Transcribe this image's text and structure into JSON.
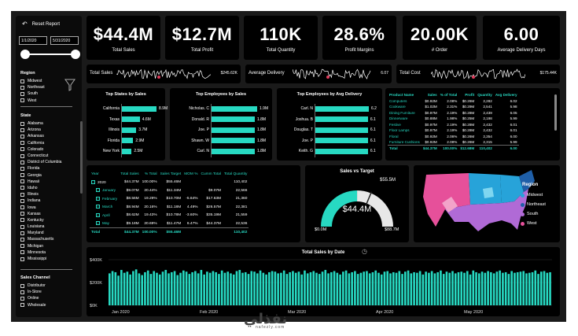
{
  "sidebar": {
    "reset_label": "Reset Report",
    "date_start": "1/1/2020",
    "date_end": "5/31/2020",
    "region_title": "Region",
    "regions": [
      "Midwest",
      "Northeast",
      "South",
      "West"
    ],
    "state_title": "State",
    "states": [
      "Alabama",
      "Arizona",
      "Arkansas",
      "California",
      "Colorado",
      "Connecticut",
      "District of Columbia",
      "Florida",
      "Georgia",
      "Hawaii",
      "Idaho",
      "Illinois",
      "Indiana",
      "Iowa",
      "Kansas",
      "Kentucky",
      "Louisiana",
      "Maryland",
      "Massachusetts",
      "Michigan",
      "Minnesota",
      "Mississippi"
    ],
    "channel_title": "Sales Channel",
    "channels": [
      "Distributor",
      "In-Store",
      "Online",
      "Wholesale"
    ]
  },
  "kpis": [
    {
      "value": "$44.4M",
      "label": "Total Sales"
    },
    {
      "value": "$12.7M",
      "label": "Total Profit"
    },
    {
      "value": "110K",
      "label": "Total Quantity"
    },
    {
      "value": "28.6%",
      "label": "Profit Margins"
    },
    {
      "value": "20.00K",
      "label": "# Order"
    },
    {
      "value": "6.00",
      "label": "Average Delivery Days"
    }
  ],
  "trends": [
    {
      "label": "Total Sales",
      "value": "$245.62K"
    },
    {
      "label": "Average Delivery",
      "value": "6.07"
    },
    {
      "label": "Total Cost",
      "value": "$175.44K"
    }
  ],
  "top_states": {
    "title": "Top States by Sales",
    "rows": [
      {
        "name": "California",
        "value": 8.9,
        "label": "8.9M"
      },
      {
        "name": "Texas",
        "value": 4.6,
        "label": "4.6M"
      },
      {
        "name": "Illinois",
        "value": 3.7,
        "label": "3.7M"
      },
      {
        "name": "Florida",
        "value": 2.9,
        "label": "2.9M"
      },
      {
        "name": "New York",
        "value": 2.5,
        "label": "2.5M"
      }
    ]
  },
  "top_employees": {
    "title": "Top Employees by Sales",
    "rows": [
      {
        "name": "Nicholas. C",
        "value": 1.9,
        "label": "1.9M"
      },
      {
        "name": "Donald. R",
        "value": 1.8,
        "label": "1.8M"
      },
      {
        "name": "Joe. P",
        "value": 1.8,
        "label": "1.8M"
      },
      {
        "name": "Shawn. W",
        "value": 1.8,
        "label": "1.8M"
      },
      {
        "name": "Carl. N",
        "value": 1.8,
        "label": "1.8M"
      }
    ]
  },
  "top_delivery": {
    "title": "Top Employees by Avg Delivery",
    "rows": [
      {
        "name": "Carl. N",
        "value": 6.2,
        "label": "6.2"
      },
      {
        "name": "Joshua. B",
        "value": 6.1,
        "label": "6.1"
      },
      {
        "name": "Douglas. T",
        "value": 6.1,
        "label": "6.1"
      },
      {
        "name": "Joe. P",
        "value": 6.1,
        "label": "6.1"
      },
      {
        "name": "Keith. G",
        "value": 6.1,
        "label": "6.1"
      }
    ]
  },
  "products": {
    "headers": [
      "Product Name",
      "Sales",
      "% of Total",
      "Profit",
      "Quantity",
      "Avg Delivery"
    ],
    "rows": [
      [
        "Computers",
        "$0.92M",
        "2.08%",
        "$0.26M",
        "2,282",
        "6.02"
      ],
      [
        "Cookware",
        "$1.02M",
        "2.31%",
        "$0.29M",
        "2,541",
        "5.98"
      ],
      [
        "Dining Furniture",
        "$0.97M",
        "2.19%",
        "$0.28M",
        "2,439",
        "6.05"
      ],
      [
        "Dinnerware",
        "$0.88M",
        "1.98%",
        "$0.25M",
        "2,198",
        "5.99"
      ],
      [
        "Festive",
        "$0.97M",
        "2.19%",
        "$0.28M",
        "2,432",
        "6.01"
      ],
      [
        "Floor Lamps",
        "$0.97M",
        "2.19%",
        "$0.28M",
        "2,432",
        "6.01"
      ],
      [
        "Floral",
        "$0.92M",
        "2.06%",
        "$0.26M",
        "2,354",
        "6.00"
      ],
      [
        "Furniture Cushions",
        "$0.92M",
        "2.08%",
        "$0.26M",
        "2,315",
        "5.99"
      ]
    ],
    "total": [
      "Total",
      "$44.37M",
      "100.00%",
      "$12.68M",
      "110,402",
      "6.00"
    ]
  },
  "year_table": {
    "headers": [
      "Year",
      "Total Sales",
      "% Total",
      "Sales Target",
      "MOM %",
      "Cumm Total",
      "Total Quantity"
    ],
    "year_row": [
      "2020",
      "$44.37M",
      "100.00%",
      "$55.46M",
      "",
      "",
      "110,402"
    ],
    "months": [
      [
        "January",
        "$9.07M",
        "20.44%",
        "$11.34M",
        "",
        "$9.07M",
        "22,566"
      ],
      [
        "February",
        "$8.56M",
        "19.29%",
        "$10.70M",
        "-5.64%",
        "$17.63M",
        "21,360"
      ],
      [
        "March",
        "$8.94M",
        "20.16%",
        "$11.18M",
        "4.49%",
        "$26.57M",
        "22,381"
      ],
      [
        "April",
        "$8.62M",
        "19.43%",
        "$10.78M",
        "-3.60%",
        "$35.19M",
        "21,559"
      ],
      [
        "May",
        "$9.18M",
        "20.69%",
        "$11.47M",
        "6.47%",
        "$44.37M",
        "22,536"
      ]
    ],
    "total": [
      "Total",
      "$44.37M",
      "100.00%",
      "$55.46M",
      "",
      "",
      "110,402"
    ]
  },
  "gauge": {
    "title": "Sales vs Target",
    "center_label": "$44.4M",
    "target_label": "$55.5M",
    "min_label": "$0.0M",
    "max_label": "$88.7M",
    "value": 44.4,
    "max": 88.7,
    "target": 55.5
  },
  "map": {
    "legend_title": "Region",
    "legend": [
      {
        "name": "Midwest",
        "color": "#27a3d9"
      },
      {
        "name": "Northeast",
        "color": "#1f5fa8"
      },
      {
        "name": "South",
        "color": "#b06ad6"
      },
      {
        "name": "West",
        "color": "#e6509a"
      }
    ]
  },
  "chart_data": {
    "type": "bar",
    "title": "Total Sales by Date",
    "y_ticks": [
      "$400K",
      "$200K",
      "$0K"
    ],
    "ylim": [
      0,
      400
    ],
    "x_labels": [
      "Jan 2020",
      "Feb 2020",
      "Mar 2020",
      "Apr 2020",
      "May 2020"
    ],
    "values": [
      280,
      300,
      290,
      260,
      310,
      285,
      295,
      270,
      300,
      315,
      280,
      265,
      290,
      305,
      275,
      300,
      285,
      270,
      295,
      310,
      280,
      290,
      300,
      265,
      285,
      305,
      295,
      275,
      290,
      300,
      280,
      310,
      270,
      295,
      285,
      300,
      290,
      275,
      305,
      285,
      295,
      280,
      270,
      300,
      310,
      285,
      290,
      275,
      300,
      295,
      280,
      305,
      285,
      270,
      290,
      300,
      295,
      280,
      285,
      305,
      275,
      290,
      300,
      285,
      295,
      270,
      305,
      280,
      290,
      300,
      285,
      275,
      295,
      310,
      280,
      290,
      300,
      285,
      270,
      295,
      305,
      280,
      290,
      300,
      275,
      285,
      295,
      300,
      280,
      290,
      305,
      285,
      270,
      295,
      300,
      280,
      290,
      285,
      300,
      275,
      295,
      305,
      280,
      290,
      285,
      300,
      270,
      295,
      285,
      300,
      280,
      290,
      305,
      275,
      295,
      285,
      300,
      280,
      290,
      295,
      285,
      300,
      270,
      305,
      290,
      280,
      295,
      285,
      300,
      290,
      280,
      295,
      305,
      285,
      290,
      275,
      300,
      285,
      290,
      295,
      300,
      280,
      285,
      290,
      305,
      275,
      295,
      300,
      285,
      290
    ]
  }
}
